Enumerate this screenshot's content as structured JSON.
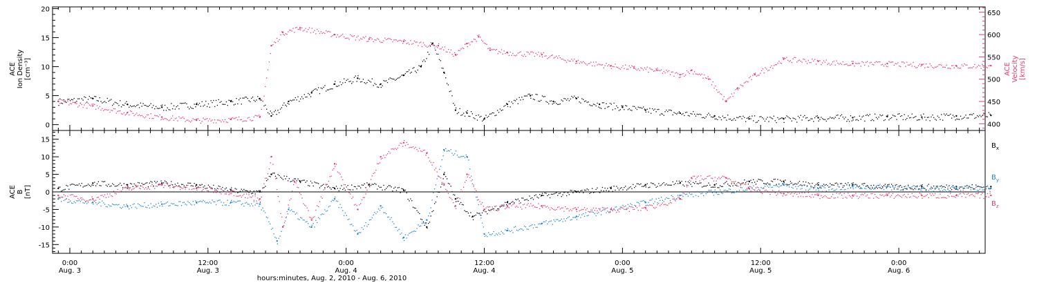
{
  "colors": {
    "density": "#000000",
    "velocity": "#e8386a",
    "bx": "#000000",
    "by": "#1a84d8",
    "bz": "#e8386a",
    "frame": "#000000"
  },
  "chart_data": [
    {
      "type": "scatter",
      "panel": "top",
      "x_unit": "hours since 00:00 Aug. 3, 2010",
      "left_axis": {
        "label_lines": [
          "ACE",
          "Ion Density",
          "[cm⁻³]"
        ],
        "ylim": [
          -1,
          20.3
        ],
        "ticks": [
          0,
          5,
          10,
          15,
          20
        ],
        "tick_labels": [
          "0",
          "5",
          "10",
          "15",
          "20"
        ]
      },
      "right_axis": {
        "label_lines": [
          "ACE",
          "Velocity",
          "[km/s]"
        ],
        "ylim": [
          385,
          662
        ],
        "ticks": [
          400,
          450,
          500,
          550,
          600,
          650
        ],
        "tick_labels": [
          "400",
          "450",
          "500",
          "550",
          "600",
          "650"
        ]
      },
      "series": [
        {
          "name": "Ion Density",
          "axis": "left",
          "color_key": "density",
          "x": [
            -1,
            2,
            5,
            8,
            11,
            14,
            16.5,
            17.5,
            19,
            21,
            23,
            25,
            27,
            29,
            30.5,
            31.5,
            32.5,
            33.5,
            34.5,
            36,
            38,
            40,
            42,
            44,
            46,
            48,
            50,
            53,
            56,
            59,
            62,
            65,
            68,
            71,
            74,
            77,
            80
          ],
          "y": [
            4.0,
            4.5,
            3.5,
            3.0,
            3.5,
            4.0,
            4.5,
            1.5,
            4.0,
            5.5,
            7.0,
            8.0,
            7.0,
            8.5,
            10.0,
            14.0,
            9.0,
            2.5,
            2.0,
            1.0,
            3.5,
            5.0,
            4.0,
            4.5,
            3.5,
            3.0,
            2.5,
            2.0,
            1.5,
            1.0,
            1.0,
            1.2,
            1.2,
            1.4,
            1.3,
            1.5,
            1.6
          ]
        },
        {
          "name": "Velocity",
          "axis": "right",
          "color_key": "velocity",
          "x": [
            -1,
            2,
            5,
            8,
            11,
            14,
            16.5,
            17.5,
            18.5,
            20,
            23,
            26,
            29,
            32,
            33.5,
            34.5,
            35.5,
            36.5,
            38,
            41,
            44,
            47,
            49,
            51,
            53,
            54,
            55.5,
            57,
            58,
            59.5,
            62,
            65,
            68,
            71,
            74,
            77,
            80
          ],
          "y": [
            450,
            440,
            425,
            415,
            408,
            410,
            415,
            575,
            605,
            615,
            600,
            590,
            585,
            575,
            555,
            580,
            595,
            565,
            560,
            555,
            540,
            530,
            525,
            520,
            510,
            520,
            500,
            450,
            480,
            510,
            545,
            540,
            535,
            535,
            532,
            530,
            530
          ]
        }
      ],
      "grid": false
    },
    {
      "type": "scatter",
      "panel": "bottom",
      "x_unit": "hours since 00:00 Aug. 3, 2010",
      "left_axis": {
        "label_lines": [
          "ACE",
          "B",
          "[nT]"
        ],
        "ylim": [
          -17.5,
          17.5
        ],
        "ticks": [
          -15,
          -10,
          -5,
          0,
          5,
          10,
          15
        ],
        "tick_labels": [
          "-15",
          "-10",
          "-5",
          "0",
          "5",
          "10",
          "15"
        ]
      },
      "zero_line": true,
      "series": [
        {
          "name": "Bx",
          "label_main": "B",
          "label_sub": "x",
          "color_key": "bx",
          "x": [
            -1,
            2,
            5,
            8,
            11,
            14,
            16.5,
            17.5,
            20,
            23,
            26,
            29,
            31,
            32.5,
            33.5,
            35,
            38,
            41,
            44,
            47,
            50,
            53,
            56,
            59,
            62,
            65,
            68,
            71,
            74,
            77,
            80
          ],
          "y": [
            1.0,
            2.5,
            2.0,
            2.5,
            2.0,
            0.5,
            0.0,
            5.0,
            3.0,
            1.0,
            2.0,
            0.5,
            -10.0,
            5.0,
            -2.0,
            -7.0,
            -3.0,
            -1.0,
            0.0,
            1.0,
            2.0,
            2.5,
            2.0,
            3.0,
            3.0,
            2.0,
            2.0,
            1.5,
            1.5,
            1.5,
            1.5
          ]
        },
        {
          "name": "By",
          "label_main": "B",
          "label_sub": "y",
          "color_key": "by",
          "x": [
            -1,
            2,
            5,
            8,
            11,
            14,
            16.5,
            18,
            19,
            21,
            23,
            25,
            27,
            29,
            31,
            32.5,
            34.5,
            36,
            38,
            41,
            44,
            47,
            50,
            53,
            56,
            59,
            62,
            65,
            68,
            71,
            74,
            77,
            80
          ],
          "y": [
            -2.0,
            -3.0,
            -4.0,
            -3.5,
            -3.0,
            -3.0,
            -3.5,
            -14.0,
            -5.0,
            -10.0,
            -2.0,
            -12.0,
            -4.0,
            -13.0,
            -8.0,
            12.0,
            10.0,
            -12.0,
            -11.0,
            -9.0,
            -7.0,
            -5.0,
            -3.0,
            -1.0,
            0.0,
            1.0,
            2.0,
            1.0,
            1.5,
            1.5,
            1.0,
            1.0,
            1.0
          ]
        },
        {
          "name": "Bz",
          "label_main": "B",
          "label_sub": "z",
          "color_key": "bz",
          "x": [
            -1,
            2,
            5,
            8,
            11,
            14,
            16.5,
            17.5,
            18.5,
            19.5,
            21,
            23,
            25,
            27,
            29,
            31,
            32.5,
            33.5,
            34.5,
            36,
            38,
            41,
            44,
            47,
            50,
            53,
            54,
            57,
            59,
            62,
            65,
            68,
            71,
            74,
            77,
            80
          ],
          "y": [
            -1.0,
            -2.0,
            1.0,
            2.0,
            1.0,
            0.0,
            -2.0,
            10.0,
            -10.0,
            3.0,
            -8.0,
            8.0,
            -5.0,
            10.0,
            14.0,
            11.0,
            2.0,
            -4.0,
            5.0,
            -5.0,
            -4.0,
            -4.0,
            -5.0,
            -5.0,
            -4.5,
            -2.0,
            4.0,
            4.0,
            1.0,
            -0.5,
            -1.0,
            -1.0,
            -1.0,
            -1.0,
            -1.0,
            -1.0
          ]
        }
      ],
      "grid": false
    }
  ],
  "x_axis": {
    "xlim": [
      -1.5,
      79.5
    ],
    "major_ticks": [
      0,
      12,
      24,
      36,
      48,
      60,
      72
    ],
    "minor_tick_step": 1,
    "tick_labels": [
      {
        "time": "0:00",
        "date": "Aug. 3"
      },
      {
        "time": "12:00",
        "date": "Aug. 3"
      },
      {
        "time": "0:00",
        "date": "Aug. 4"
      },
      {
        "time": "12:00",
        "date": "Aug. 4"
      },
      {
        "time": "0:00",
        "date": "Aug. 5"
      },
      {
        "time": "12:00",
        "date": "Aug. 5"
      },
      {
        "time": "0:00",
        "date": "Aug. 6"
      }
    ],
    "title": "hours:minutes, Aug.  2, 2010 - Aug.  6, 2010"
  }
}
